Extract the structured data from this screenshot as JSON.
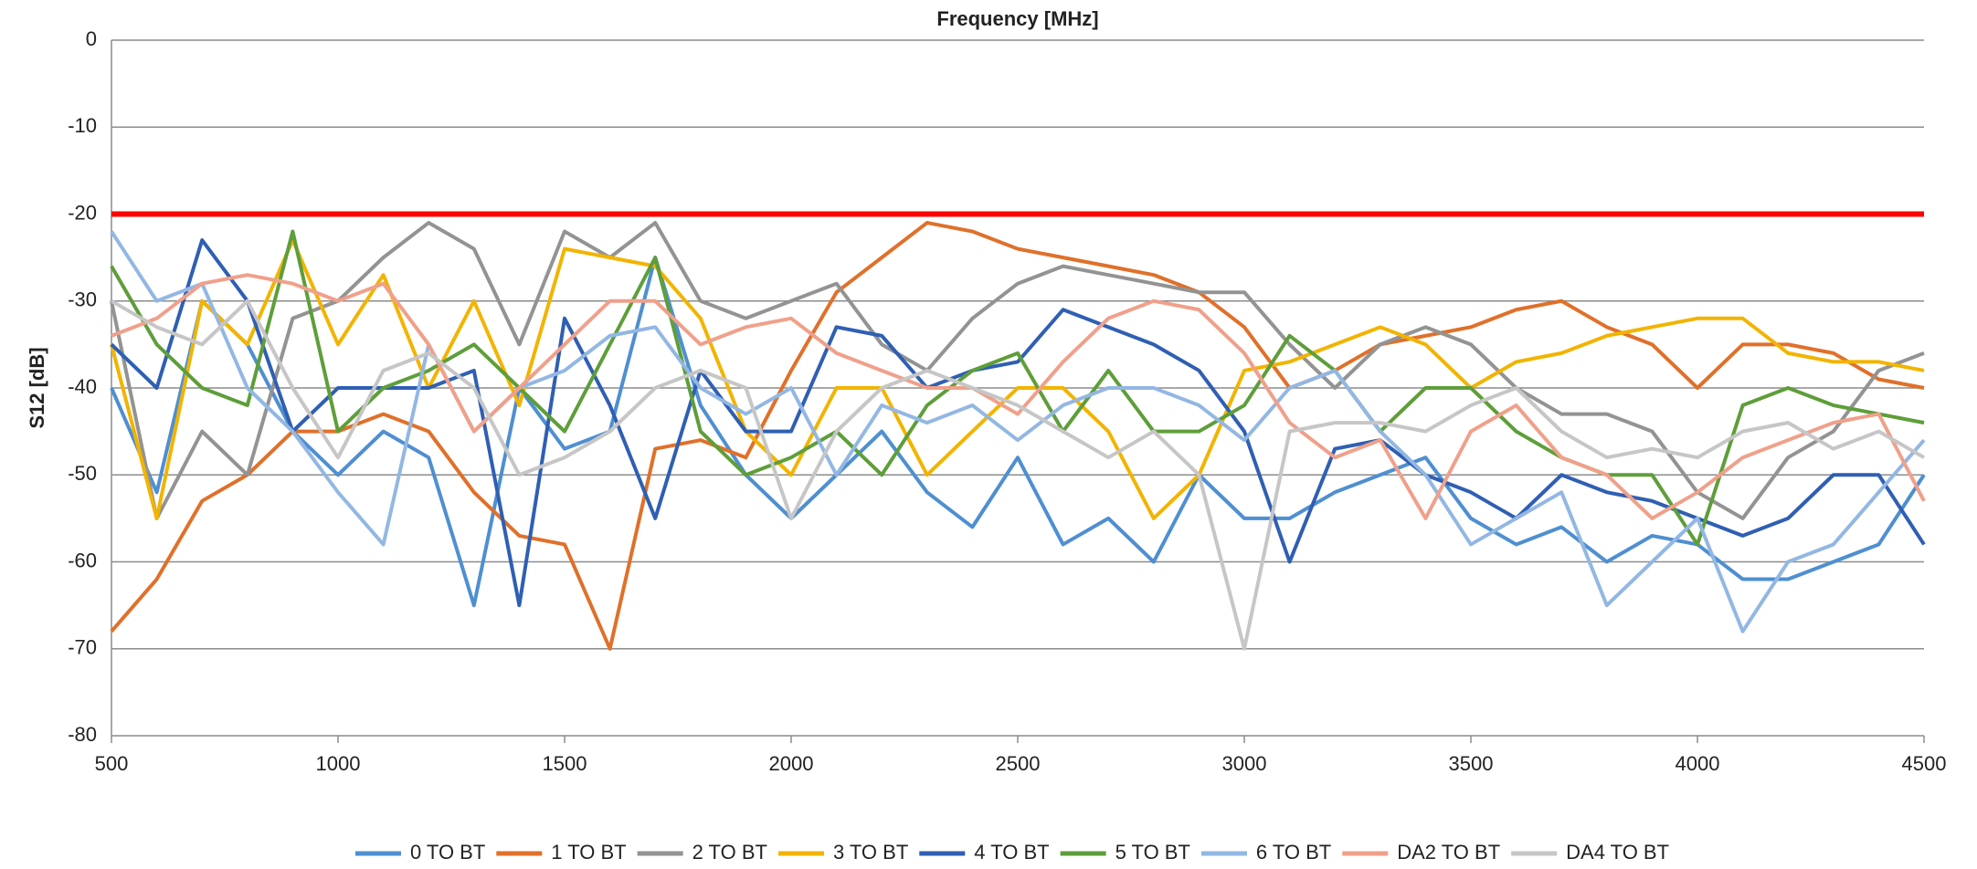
{
  "chart_data": {
    "type": "line",
    "title": "Frequency [MHz]",
    "y_label": "S12 [dB]",
    "xlim": [
      500,
      4500
    ],
    "xticks": [
      500,
      1000,
      1500,
      2000,
      2500,
      3000,
      3500,
      4000,
      4500
    ],
    "ylim": [
      -80,
      0
    ],
    "yticks": [
      0,
      -10,
      -20,
      -30,
      -40,
      -50,
      -60,
      -70,
      -80
    ],
    "grid": true,
    "legend": "bottom",
    "threshold": {
      "value": -20,
      "color": "#ff0000"
    },
    "x": [
      500,
      600,
      700,
      800,
      900,
      1000,
      1100,
      1200,
      1300,
      1400,
      1500,
      1600,
      1700,
      1800,
      1900,
      2000,
      2100,
      2200,
      2300,
      2400,
      2500,
      2600,
      2700,
      2800,
      2900,
      3000,
      3100,
      3200,
      3300,
      3400,
      3500,
      3600,
      3700,
      3800,
      3900,
      4000,
      4100,
      4200,
      4300,
      4400,
      4500
    ],
    "series": [
      {
        "name": "0 TO BT",
        "color": "#4e8fd1",
        "values": [
          -40,
          -52,
          -30,
          -35,
          -45,
          -50,
          -45,
          -48,
          -65,
          -40,
          -47,
          -45,
          -25,
          -42,
          -50,
          -55,
          -50,
          -45,
          -52,
          -56,
          -48,
          -58,
          -55,
          -60,
          -50,
          -55,
          -55,
          -52,
          -50,
          -48,
          -55,
          -58,
          -56,
          -60,
          -57,
          -58,
          -62,
          -62,
          -60,
          -58,
          -50
        ]
      },
      {
        "name": "1 TO BT",
        "color": "#e0702a",
        "values": [
          -68,
          -62,
          -53,
          -50,
          -45,
          -45,
          -43,
          -45,
          -52,
          -57,
          -58,
          -70,
          -47,
          -46,
          -48,
          -38,
          -29,
          -25,
          -21,
          -22,
          -24,
          -25,
          -26,
          -27,
          -29,
          -33,
          -40,
          -38,
          -35,
          -34,
          -33,
          -31,
          -30,
          -33,
          -35,
          -40,
          -35,
          -35,
          -36,
          -39,
          -40
        ]
      },
      {
        "name": "2 TO BT",
        "color": "#939393",
        "values": [
          -30,
          -55,
          -45,
          -50,
          -32,
          -30,
          -25,
          -21,
          -24,
          -35,
          -22,
          -25,
          -21,
          -30,
          -32,
          -30,
          -28,
          -35,
          -38,
          -32,
          -28,
          -26,
          -27,
          -28,
          -29,
          -29,
          -35,
          -40,
          -35,
          -33,
          -35,
          -40,
          -43,
          -43,
          -45,
          -52,
          -55,
          -48,
          -45,
          -38,
          -36
        ]
      },
      {
        "name": "3 TO BT",
        "color": "#f2b400",
        "values": [
          -35,
          -55,
          -30,
          -35,
          -23,
          -35,
          -27,
          -40,
          -30,
          -42,
          -24,
          -25,
          -26,
          -32,
          -45,
          -50,
          -40,
          -40,
          -50,
          -45,
          -40,
          -40,
          -45,
          -55,
          -50,
          -38,
          -37,
          -35,
          -33,
          -35,
          -40,
          -37,
          -36,
          -34,
          -33,
          -32,
          -32,
          -36,
          -37,
          -37,
          -38
        ]
      },
      {
        "name": "4 TO BT",
        "color": "#2f5fb3",
        "values": [
          -35,
          -40,
          -23,
          -30,
          -45,
          -40,
          -40,
          -40,
          -38,
          -65,
          -32,
          -42,
          -55,
          -38,
          -45,
          -45,
          -33,
          -34,
          -40,
          -38,
          -37,
          -31,
          -33,
          -35,
          -38,
          -45,
          -60,
          -47,
          -46,
          -50,
          -52,
          -55,
          -50,
          -52,
          -53,
          -55,
          -57,
          -55,
          -50,
          -50,
          -58
        ]
      },
      {
        "name": "5 TO BT",
        "color": "#5e9e3a",
        "values": [
          -26,
          -35,
          -40,
          -42,
          -22,
          -45,
          -40,
          -38,
          -35,
          -40,
          -45,
          -35,
          -25,
          -45,
          -50,
          -48,
          -45,
          -50,
          -42,
          -38,
          -36,
          -45,
          -38,
          -45,
          -45,
          -42,
          -34,
          -38,
          -45,
          -40,
          -40,
          -45,
          -48,
          -50,
          -50,
          -58,
          -42,
          -40,
          -42,
          -43,
          -44
        ]
      },
      {
        "name": "6 TO BT",
        "color": "#93b7e3",
        "values": [
          -22,
          -30,
          -28,
          -40,
          -45,
          -52,
          -58,
          -35,
          -45,
          -40,
          -38,
          -34,
          -33,
          -40,
          -43,
          -40,
          -50,
          -42,
          -44,
          -42,
          -46,
          -42,
          -40,
          -40,
          -42,
          -46,
          -40,
          -38,
          -45,
          -50,
          -58,
          -55,
          -52,
          -65,
          -60,
          -55,
          -68,
          -60,
          -58,
          -52,
          -46
        ]
      },
      {
        "name": "DA2 TO BT",
        "color": "#f0a08a",
        "values": [
          -34,
          -32,
          -28,
          -27,
          -28,
          -30,
          -28,
          -35,
          -45,
          -40,
          -35,
          -30,
          -30,
          -35,
          -33,
          -32,
          -36,
          -38,
          -40,
          -40,
          -43,
          -37,
          -32,
          -30,
          -31,
          -36,
          -44,
          -48,
          -46,
          -55,
          -45,
          -42,
          -48,
          -50,
          -55,
          -52,
          -48,
          -46,
          -44,
          -43,
          -53
        ]
      },
      {
        "name": "DA4 TO BT",
        "color": "#c6c6c6",
        "values": [
          -30,
          -33,
          -35,
          -30,
          -40,
          -48,
          -38,
          -36,
          -40,
          -50,
          -48,
          -45,
          -40,
          -38,
          -40,
          -55,
          -45,
          -40,
          -38,
          -40,
          -42,
          -45,
          -48,
          -45,
          -50,
          -70,
          -45,
          -44,
          -44,
          -45,
          -42,
          -40,
          -45,
          -48,
          -47,
          -48,
          -45,
          -44,
          -47,
          -45,
          -48
        ]
      }
    ]
  }
}
